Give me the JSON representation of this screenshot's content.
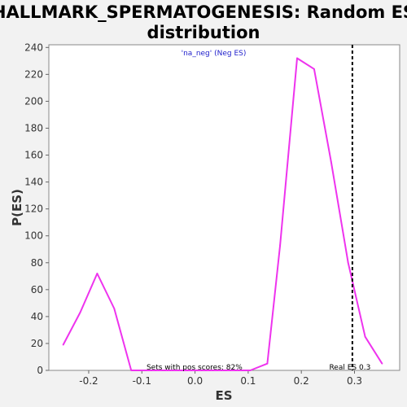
{
  "chart_data": {
    "type": "line",
    "title_line1": "HALLMARK_SPERMATOGENESIS: Random ES",
    "title_line2": "distribution",
    "xlabel": "ES",
    "ylabel": "P(ES)",
    "xlim": [
      -0.275,
      0.385
    ],
    "ylim": [
      0,
      242
    ],
    "xticks": [
      -0.2,
      -0.1,
      0.0,
      0.1,
      0.2,
      0.3
    ],
    "xtick_labels": [
      "-0.2",
      "-0.1",
      "0.0",
      "0.1",
      "0.2",
      "0.3"
    ],
    "yticks": [
      0,
      20,
      40,
      60,
      80,
      100,
      120,
      140,
      160,
      180,
      200,
      220,
      240
    ],
    "ytick_labels": [
      "0",
      "20",
      "40",
      "60",
      "80",
      "100",
      "120",
      "140",
      "160",
      "180",
      "200",
      "220",
      "240"
    ],
    "grid": false,
    "legend_position": "top-center",
    "series": [
      {
        "name": "'na_neg' (Neg ES)",
        "color": "#ee33ee",
        "x": [
          -0.248,
          -0.216,
          -0.184,
          -0.152,
          -0.12,
          -0.088,
          -0.056,
          -0.024,
          0.008,
          0.04,
          0.072,
          0.104,
          0.136,
          0.16,
          0.192,
          0.224,
          0.256,
          0.288,
          0.32,
          0.352
        ],
        "y": [
          19,
          43,
          72,
          46,
          0,
          0,
          0,
          0,
          0,
          0,
          0,
          0,
          5,
          93,
          232,
          224,
          155,
          80,
          25,
          5
        ]
      }
    ],
    "reference_line": {
      "x": 0.296,
      "color": "#000000",
      "label": "Real ES 0.3"
    },
    "annotations": {
      "pos_scores_text": "Sets with pos scores: 82%",
      "pos_scores_x": 0.1
    }
  }
}
